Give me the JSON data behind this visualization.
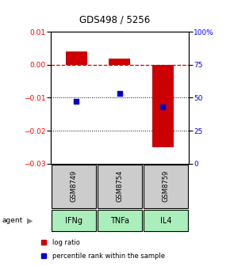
{
  "title": "GDS498 / 5256",
  "samples": [
    "GSM8749",
    "GSM8754",
    "GSM8759"
  ],
  "agents": [
    "IFNg",
    "TNFa",
    "IL4"
  ],
  "log_ratio": [
    0.004,
    0.002,
    -0.025
  ],
  "percentile_rank": [
    47,
    53,
    43
  ],
  "bar_color": "#cc0000",
  "dot_color": "#0000cc",
  "ylim_left": [
    -0.03,
    0.01
  ],
  "ylim_right": [
    0,
    100
  ],
  "yticks_left": [
    -0.03,
    -0.02,
    -0.01,
    0.0,
    0.01
  ],
  "yticks_right": [
    0,
    25,
    50,
    75,
    100
  ],
  "ytick_labels_right": [
    "0",
    "25",
    "50",
    "75",
    "100%"
  ],
  "zero_line_color": "#cc0000",
  "sample_box_color": "#cccccc",
  "agent_box_color": "#aaeebb",
  "bar_width": 0.5,
  "legend_log": "log ratio",
  "legend_pct": "percentile rank within the sample",
  "agent_label": "agent"
}
